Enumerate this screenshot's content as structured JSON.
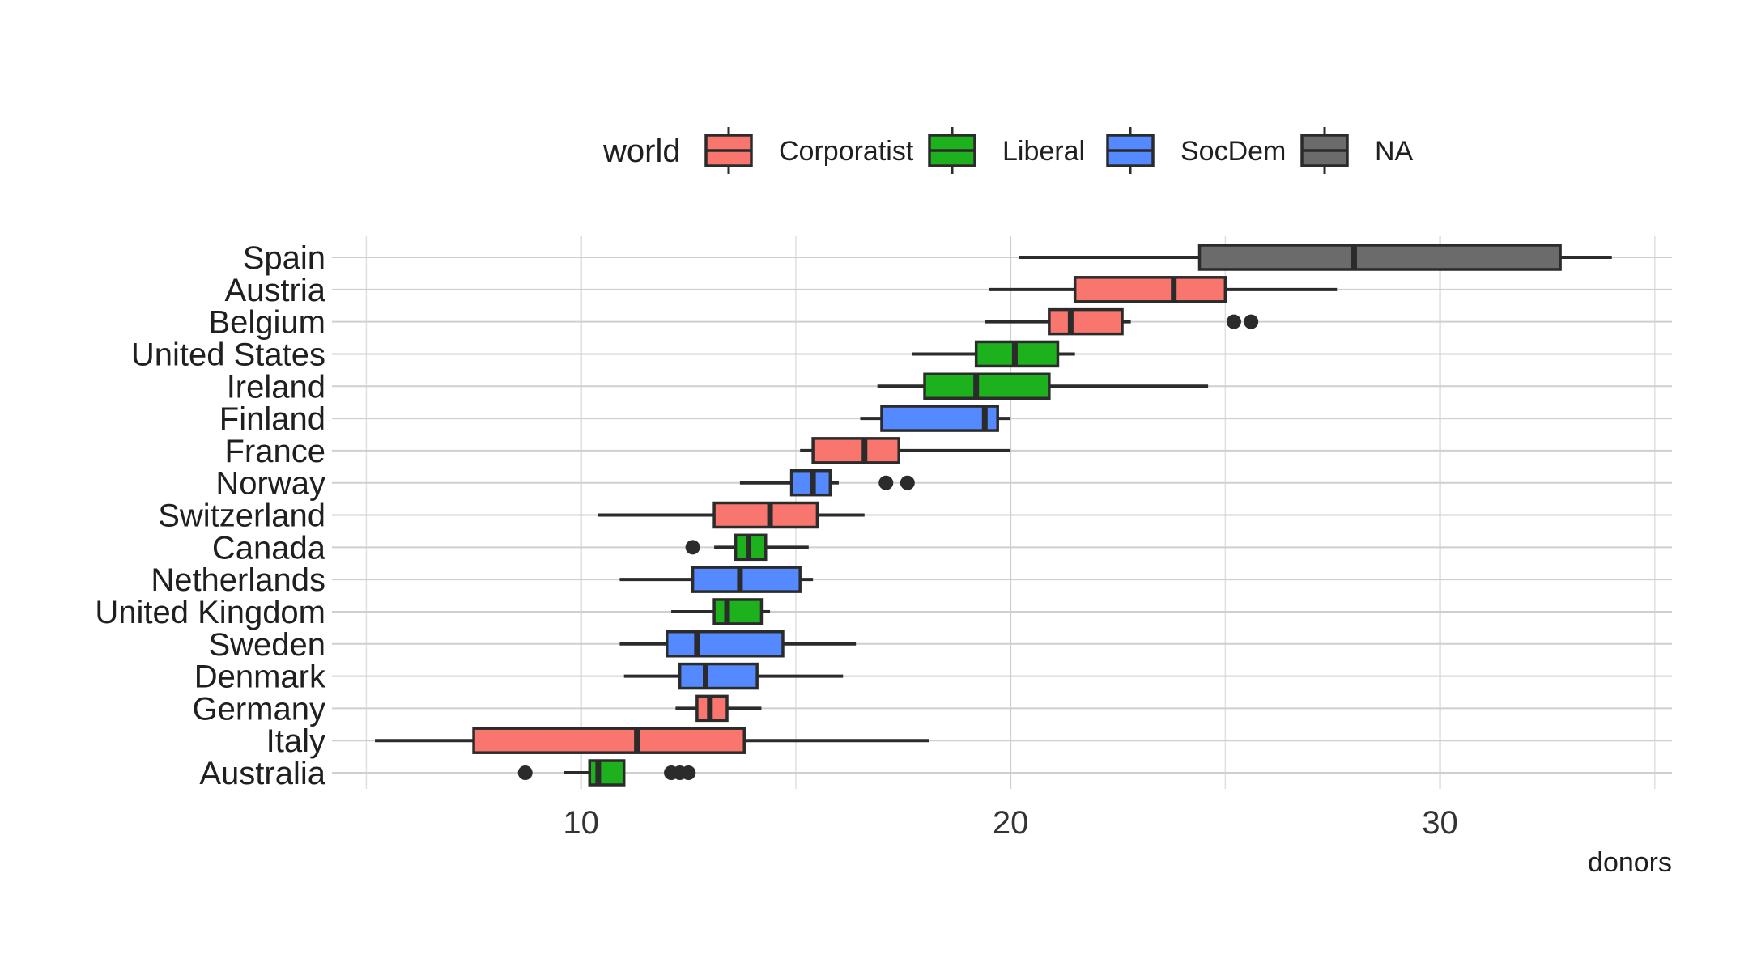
{
  "chart_data": {
    "type": "boxplot",
    "orientation": "horizontal",
    "xlabel": "donors",
    "xlim": [
      4.2,
      35.4
    ],
    "xticks": [
      10,
      20,
      30
    ],
    "minor_gridlines": [
      5,
      15,
      25,
      35
    ],
    "grid": true,
    "legend": {
      "title": "world",
      "placement": "top",
      "entries": [
        {
          "name": "Corporatist",
          "color": "#F8766D"
        },
        {
          "name": "Liberal",
          "color": "#1DB11D"
        },
        {
          "name": "SocDem",
          "color": "#5489FF"
        },
        {
          "name": "NA",
          "color": "#6B6B6B"
        }
      ]
    },
    "categories_top_to_bottom": [
      "Spain",
      "Austria",
      "Belgium",
      "United States",
      "Ireland",
      "Finland",
      "France",
      "Norway",
      "Switzerland",
      "Canada",
      "Netherlands",
      "United Kingdom",
      "Sweden",
      "Denmark",
      "Germany",
      "Italy",
      "Australia"
    ],
    "boxes": [
      {
        "country": "Spain",
        "world": "NA",
        "whisker_low": 20.2,
        "q1": 24.4,
        "median": 28.0,
        "q3": 32.8,
        "whisker_high": 34.0,
        "outliers": []
      },
      {
        "country": "Austria",
        "world": "Corporatist",
        "whisker_low": 19.5,
        "q1": 21.5,
        "median": 23.8,
        "q3": 25.0,
        "whisker_high": 27.6,
        "outliers": []
      },
      {
        "country": "Belgium",
        "world": "Corporatist",
        "whisker_low": 19.4,
        "q1": 20.9,
        "median": 21.4,
        "q3": 22.6,
        "whisker_high": 22.8,
        "outliers": [
          25.2,
          25.6
        ]
      },
      {
        "country": "United States",
        "world": "Liberal",
        "whisker_low": 17.7,
        "q1": 19.2,
        "median": 20.1,
        "q3": 21.1,
        "whisker_high": 21.5,
        "outliers": []
      },
      {
        "country": "Ireland",
        "world": "Liberal",
        "whisker_low": 16.9,
        "q1": 18.0,
        "median": 19.2,
        "q3": 20.9,
        "whisker_high": 24.6,
        "outliers": []
      },
      {
        "country": "Finland",
        "world": "SocDem",
        "whisker_low": 16.5,
        "q1": 17.0,
        "median": 19.4,
        "q3": 19.7,
        "whisker_high": 20.0,
        "outliers": []
      },
      {
        "country": "France",
        "world": "Corporatist",
        "whisker_low": 15.1,
        "q1": 15.4,
        "median": 16.6,
        "q3": 17.4,
        "whisker_high": 20.0,
        "outliers": []
      },
      {
        "country": "Norway",
        "world": "SocDem",
        "whisker_low": 13.7,
        "q1": 14.9,
        "median": 15.4,
        "q3": 15.8,
        "whisker_high": 16.0,
        "outliers": [
          17.1,
          17.6
        ]
      },
      {
        "country": "Switzerland",
        "world": "Corporatist",
        "whisker_low": 10.4,
        "q1": 13.1,
        "median": 14.4,
        "q3": 15.5,
        "whisker_high": 16.6,
        "outliers": []
      },
      {
        "country": "Canada",
        "world": "Liberal",
        "whisker_low": 13.1,
        "q1": 13.6,
        "median": 13.9,
        "q3": 14.3,
        "whisker_high": 15.3,
        "outliers": [
          12.6
        ]
      },
      {
        "country": "Netherlands",
        "world": "SocDem",
        "whisker_low": 10.9,
        "q1": 12.6,
        "median": 13.7,
        "q3": 15.1,
        "whisker_high": 15.4,
        "outliers": []
      },
      {
        "country": "United Kingdom",
        "world": "Liberal",
        "whisker_low": 12.1,
        "q1": 13.1,
        "median": 13.4,
        "q3": 14.2,
        "whisker_high": 14.4,
        "outliers": []
      },
      {
        "country": "Sweden",
        "world": "SocDem",
        "whisker_low": 10.9,
        "q1": 12.0,
        "median": 12.7,
        "q3": 14.7,
        "whisker_high": 16.4,
        "outliers": []
      },
      {
        "country": "Denmark",
        "world": "SocDem",
        "whisker_low": 11.0,
        "q1": 12.3,
        "median": 12.9,
        "q3": 14.1,
        "whisker_high": 16.1,
        "outliers": []
      },
      {
        "country": "Germany",
        "world": "Corporatist",
        "whisker_low": 12.2,
        "q1": 12.7,
        "median": 13.0,
        "q3": 13.4,
        "whisker_high": 14.2,
        "outliers": []
      },
      {
        "country": "Italy",
        "world": "Corporatist",
        "whisker_low": 5.2,
        "q1": 7.5,
        "median": 11.3,
        "q3": 13.8,
        "whisker_high": 18.1,
        "outliers": []
      },
      {
        "country": "Australia",
        "world": "Liberal",
        "whisker_low": 9.6,
        "q1": 10.2,
        "median": 10.4,
        "q3": 11.0,
        "whisker_high": 11.0,
        "outliers": [
          8.7,
          12.1,
          12.3,
          12.5
        ]
      }
    ]
  }
}
